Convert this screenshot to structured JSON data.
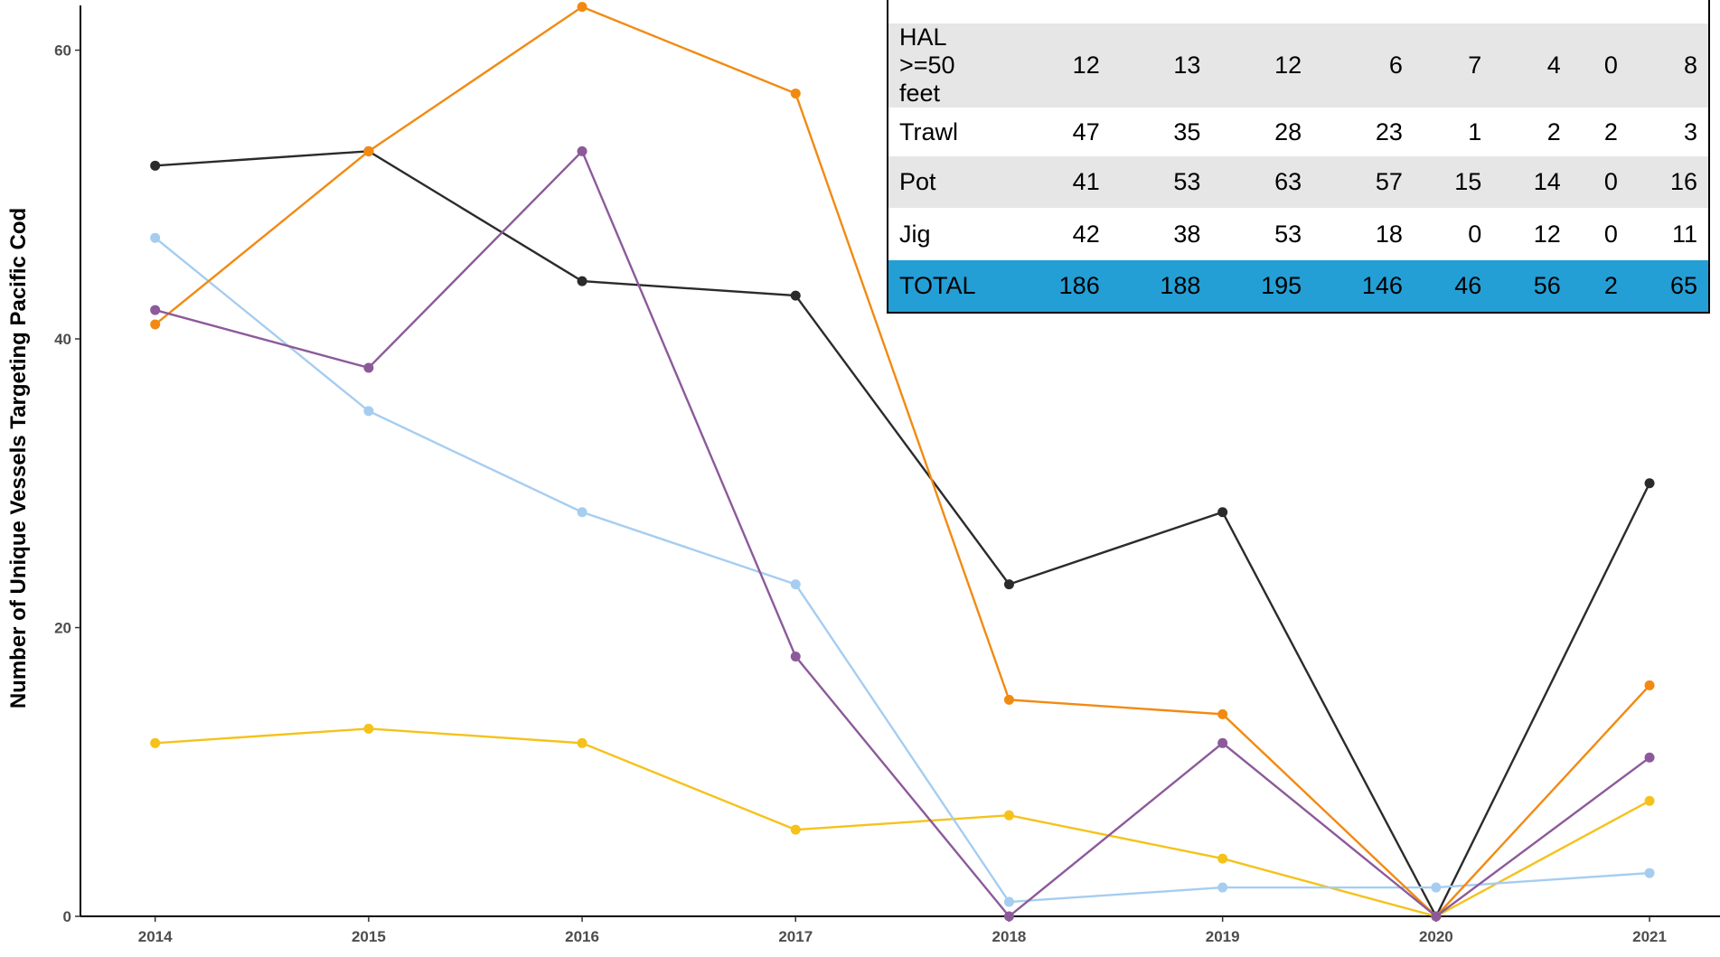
{
  "chart_data": {
    "type": "line",
    "y_label": "Number of Unique Vessels Targeting Pacific Cod",
    "x": [
      2014,
      2015,
      2016,
      2017,
      2018,
      2019,
      2020,
      2021
    ],
    "xlim": [
      2013.65,
      2021.33
    ],
    "xticks": [
      2014,
      2015,
      2016,
      2017,
      2018,
      2019,
      2020,
      2021
    ],
    "ylim": [
      0,
      63.1
    ],
    "yticks": [
      0,
      20,
      40,
      60
    ],
    "series": [
      {
        "color": "#2b2b2b",
        "values": [
          52,
          53,
          44,
          43,
          23,
          28,
          0,
          30
        ]
      },
      {
        "name": "HAL >=50 feet",
        "color": "#f5c21b",
        "values": [
          12,
          13,
          12,
          6,
          7,
          4,
          0,
          8
        ]
      },
      {
        "name": "Trawl",
        "color": "#a6cdf0",
        "values": [
          47,
          35,
          28,
          23,
          1,
          2,
          2,
          3
        ]
      },
      {
        "name": "Pot",
        "color": "#f28a12",
        "values": [
          41,
          53,
          63,
          57,
          15,
          14,
          0,
          16
        ]
      },
      {
        "name": "Jig",
        "color": "#8c5a9a",
        "values": [
          42,
          38,
          53,
          18,
          0,
          12,
          0,
          11
        ]
      }
    ]
  },
  "table": {
    "total_label": "TOTAL",
    "totals": [
      186,
      188,
      195,
      146,
      46,
      56,
      2,
      65
    ]
  }
}
